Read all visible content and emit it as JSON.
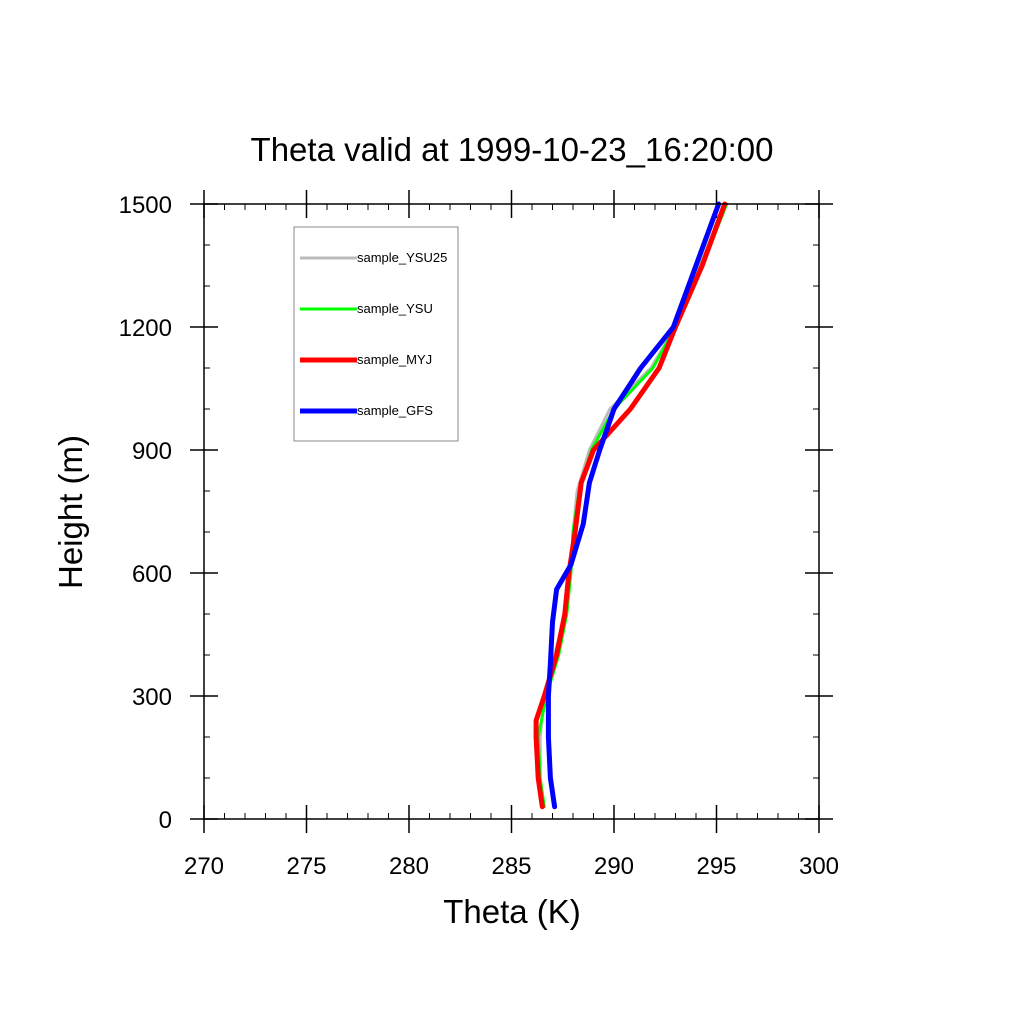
{
  "chart_data": {
    "type": "line",
    "title": "Theta valid at 1999-10-23_16:20:00",
    "xlabel": "Theta (K)",
    "ylabel": "Height (m)",
    "xlim": [
      270,
      300
    ],
    "ylim": [
      0,
      1500
    ],
    "xticks": [
      270,
      275,
      280,
      285,
      290,
      295,
      300
    ],
    "yticks": [
      0,
      300,
      600,
      900,
      1200,
      1500
    ],
    "xtick_labels": [
      "270",
      "275",
      "280",
      "285",
      "290",
      "295",
      "300"
    ],
    "ytick_labels": [
      "0",
      "300",
      "600",
      "900",
      "1200",
      "1500"
    ],
    "grid": false,
    "legend_position": "top-left",
    "series": [
      {
        "name": "sample_YSU25",
        "color": "#bbbbbb",
        "x": [
          286.5,
          286.4,
          286.4,
          286.6,
          287.1,
          287.6,
          287.9,
          288.0,
          288.2,
          288.8,
          289.8,
          291.8,
          293.0,
          294.2,
          295.4
        ],
        "y": [
          30,
          100,
          200,
          300,
          400,
          500,
          600,
          700,
          800,
          900,
          1000,
          1100,
          1200,
          1350,
          1500
        ]
      },
      {
        "name": "sample_YSU",
        "color": "#00ff00",
        "x": [
          286.6,
          286.4,
          286.3,
          286.7,
          287.3,
          287.7,
          287.9,
          288.0,
          288.3,
          288.9,
          290.0,
          291.9,
          293.0,
          294.3,
          295.5
        ],
        "y": [
          30,
          100,
          200,
          300,
          400,
          500,
          600,
          700,
          800,
          900,
          1000,
          1100,
          1200,
          1350,
          1500
        ]
      },
      {
        "name": "sample_MYJ",
        "color": "#ff0000",
        "x": [
          286.5,
          286.3,
          286.2,
          286.2,
          286.6,
          287.2,
          287.6,
          287.8,
          288.1,
          288.4,
          289.0,
          290.8,
          292.2,
          293.0,
          294.3,
          295.4
        ],
        "y": [
          30,
          100,
          200,
          240,
          300,
          400,
          500,
          600,
          700,
          820,
          900,
          1000,
          1100,
          1200,
          1350,
          1500
        ]
      },
      {
        "name": "sample_GFS",
        "color": "#0000ff",
        "x": [
          287.1,
          286.9,
          286.8,
          286.8,
          286.9,
          287.0,
          287.2,
          287.9,
          288.5,
          288.8,
          289.3,
          290.0,
          291.3,
          292.9,
          295.1
        ],
        "y": [
          30,
          100,
          200,
          300,
          380,
          480,
          560,
          620,
          720,
          820,
          900,
          1000,
          1100,
          1200,
          1500
        ]
      }
    ]
  }
}
